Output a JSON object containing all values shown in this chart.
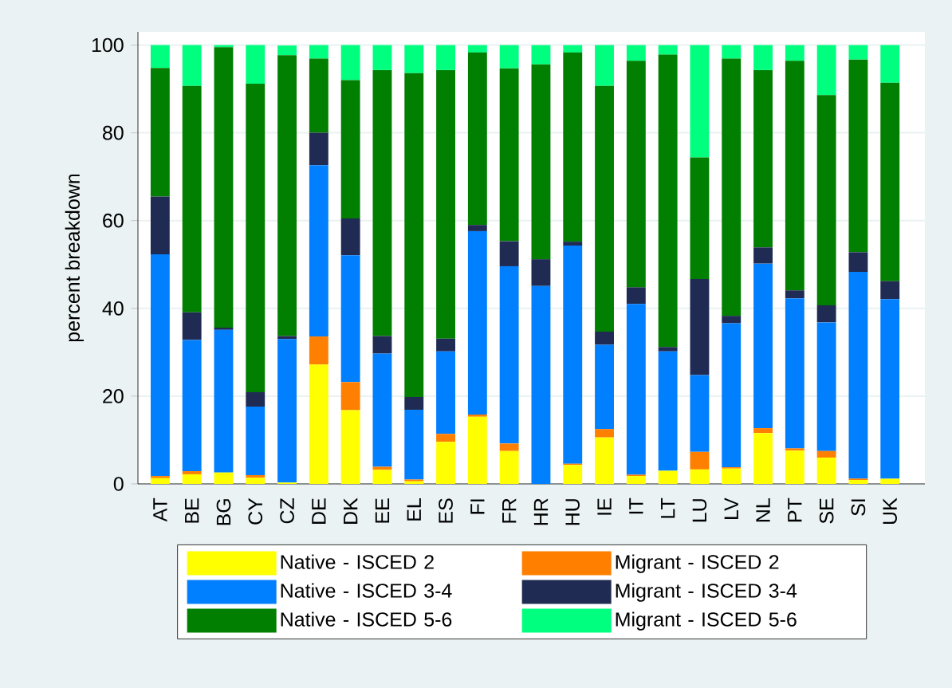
{
  "chart_data": {
    "type": "bar",
    "stacked": true,
    "ylabel": "percent breakdown",
    "categories": [
      "AT",
      "BE",
      "BG",
      "CY",
      "CZ",
      "DE",
      "DK",
      "EE",
      "EL",
      "ES",
      "FI",
      "FR",
      "HR",
      "HU",
      "IE",
      "IT",
      "LT",
      "LU",
      "LV",
      "NL",
      "PT",
      "SE",
      "SI",
      "UK"
    ],
    "series": [
      {
        "name": "Native - ISCED 2",
        "color": "#ffff00",
        "values": [
          1.3,
          2.2,
          2.6,
          1.4,
          0.3,
          27.2,
          16.8,
          3.2,
          0.6,
          9.6,
          15.3,
          7.5,
          0,
          4.3,
          10.6,
          1.8,
          3.0,
          3.3,
          3.5,
          11.6,
          7.6,
          6.0,
          0.9,
          1.2
        ]
      },
      {
        "name": "Migrant - ISCED 2",
        "color": "#ff7f00",
        "values": [
          0.5,
          0.7,
          0.0,
          0.6,
          null,
          6.4,
          6.4,
          0.7,
          0.4,
          1.8,
          0.5,
          1.7,
          0,
          0.3,
          1.9,
          0.3,
          0.0,
          4.0,
          0.3,
          1.1,
          0.5,
          1.5,
          0.3,
          0.0
        ]
      },
      {
        "name": "Native - ISCED 3-4",
        "color": "#007fff",
        "values": [
          50.5,
          29.9,
          32.5,
          15.6,
          32.7,
          39.0,
          28.9,
          25.8,
          15.9,
          18.8,
          41.8,
          40.4,
          45.1,
          49.7,
          19.2,
          38.9,
          27.2,
          17.5,
          32.8,
          37.5,
          34.2,
          29.3,
          47.1,
          40.9
        ]
      },
      {
        "name": "Migrant - ISCED 3-4",
        "color": "#1f2b52",
        "values": [
          13.2,
          6.3,
          0.5,
          3.3,
          0.7,
          7.4,
          8.4,
          4.0,
          2.9,
          2.9,
          1.4,
          5.7,
          6.1,
          0.9,
          3.0,
          3.8,
          1.0,
          21.9,
          1.7,
          3.7,
          1.8,
          3.9,
          4.5,
          4.1
        ]
      },
      {
        "name": "Native - ISCED 5-6",
        "color": "#007f00",
        "values": [
          29.3,
          51.6,
          63.9,
          70.3,
          64.0,
          16.9,
          31.5,
          60.6,
          73.8,
          61.2,
          39.3,
          39.4,
          44.4,
          43.1,
          56.0,
          51.6,
          66.6,
          27.7,
          58.6,
          40.4,
          52.3,
          47.9,
          43.9,
          45.2
        ]
      },
      {
        "name": "Migrant - ISCED 5-6",
        "color": "#00ff7f",
        "values": [
          5.2,
          9.3,
          0.5,
          8.8,
          2.2,
          3.1,
          8.0,
          5.7,
          6.4,
          5.7,
          1.7,
          5.3,
          4.4,
          1.7,
          9.3,
          3.6,
          2.2,
          25.6,
          3.1,
          5.7,
          3.6,
          11.4,
          3.3,
          8.6
        ]
      }
    ],
    "ylim": [
      0,
      103
    ],
    "yticks": [
      0,
      20,
      40,
      60,
      80,
      100
    ],
    "grid": "y",
    "legend": "bottom"
  }
}
